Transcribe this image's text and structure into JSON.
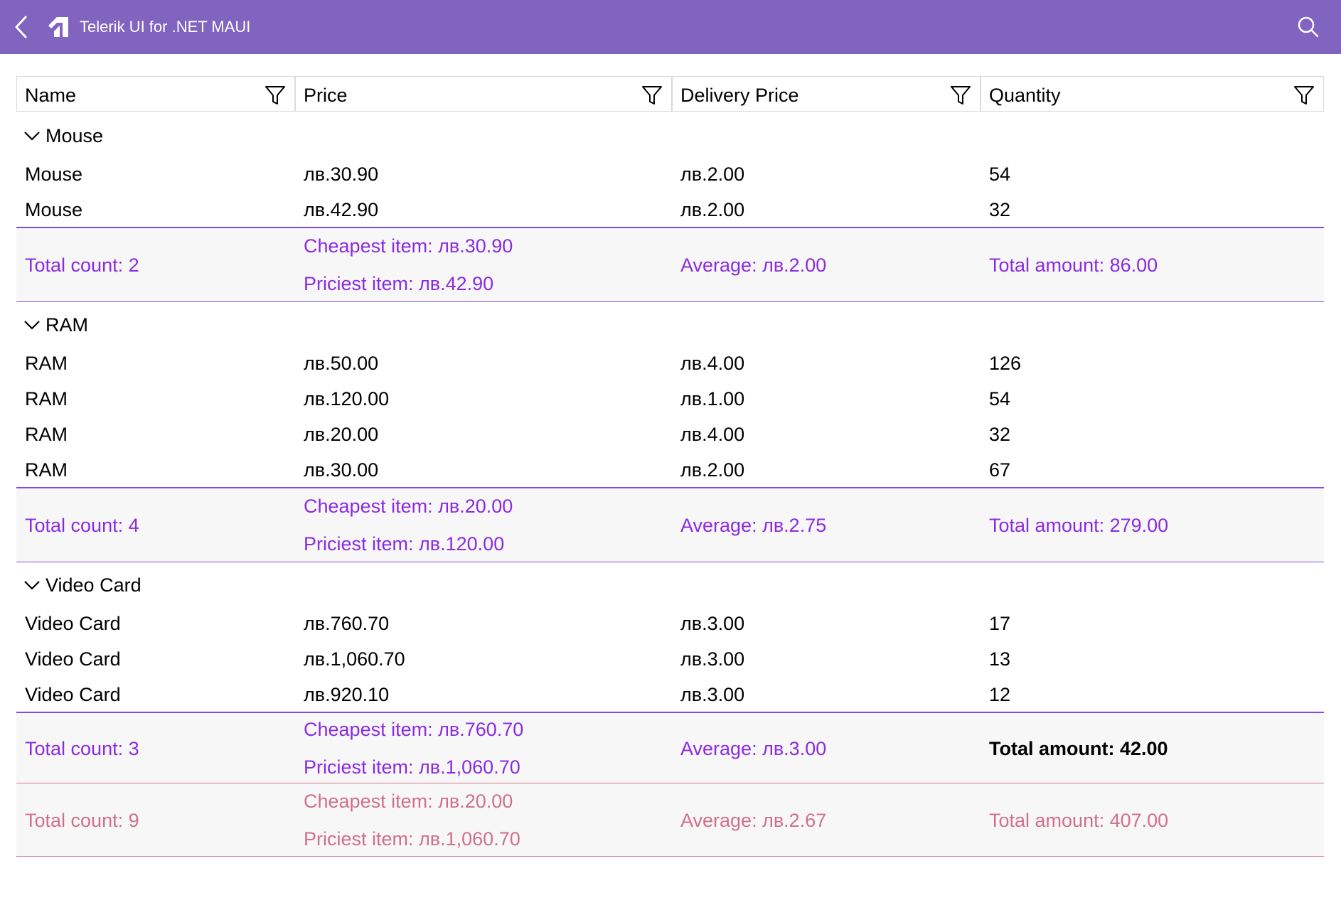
{
  "titlebar": {
    "title": "Telerik UI for .NET MAUI"
  },
  "columns": [
    "Name",
    "Price",
    "Delivery Price",
    "Quantity"
  ],
  "groups": [
    {
      "name": "Mouse",
      "rows": [
        [
          "Mouse",
          "лв.30.90",
          "лв.2.00",
          "54"
        ],
        [
          "Mouse",
          "лв.42.90",
          "лв.2.00",
          "32"
        ]
      ],
      "summary": {
        "count": "Total count:  2",
        "cheapest": "Cheapest item:  лв.30.90",
        "priciest": "Priciest item:  лв.42.90",
        "average": "Average:  лв.2.00",
        "amount": "Total amount:  86.00"
      }
    },
    {
      "name": "RAM",
      "rows": [
        [
          "RAM",
          "лв.50.00",
          "лв.4.00",
          "126"
        ],
        [
          "RAM",
          "лв.120.00",
          "лв.1.00",
          "54"
        ],
        [
          "RAM",
          "лв.20.00",
          "лв.4.00",
          "32"
        ],
        [
          "RAM",
          "лв.30.00",
          "лв.2.00",
          "67"
        ]
      ],
      "summary": {
        "count": "Total count:  4",
        "cheapest": "Cheapest item:  лв.20.00",
        "priciest": "Priciest item:  лв.120.00",
        "average": "Average:  лв.2.75",
        "amount": "Total amount:  279.00"
      }
    },
    {
      "name": "Video Card",
      "rows": [
        [
          "Video Card",
          "лв.760.70",
          "лв.3.00",
          "17"
        ],
        [
          "Video Card",
          "лв.1,060.70",
          "лв.3.00",
          "13"
        ],
        [
          "Video Card",
          "лв.920.10",
          "лв.3.00",
          "12"
        ]
      ],
      "summary": {
        "count": "Total count:  3",
        "cheapest": "Cheapest item:  лв.760.70",
        "priciest": "Priciest item:  лв.1,060.70",
        "average": "Average:  лв.3.00",
        "amount": "Total amount:  42.00"
      }
    }
  ],
  "grand_total": {
    "count": "Total count:  9",
    "cheapest": "Cheapest item:  лв.20.00",
    "priciest": "Priciest item:  лв.1,060.70",
    "average": "Average:  лв.2.67",
    "amount": "Total amount:  407.00"
  },
  "colors": {
    "titlebar": "#8163c0",
    "summary_text": "#8a2be2",
    "grand_total_text": "#d0708a"
  }
}
